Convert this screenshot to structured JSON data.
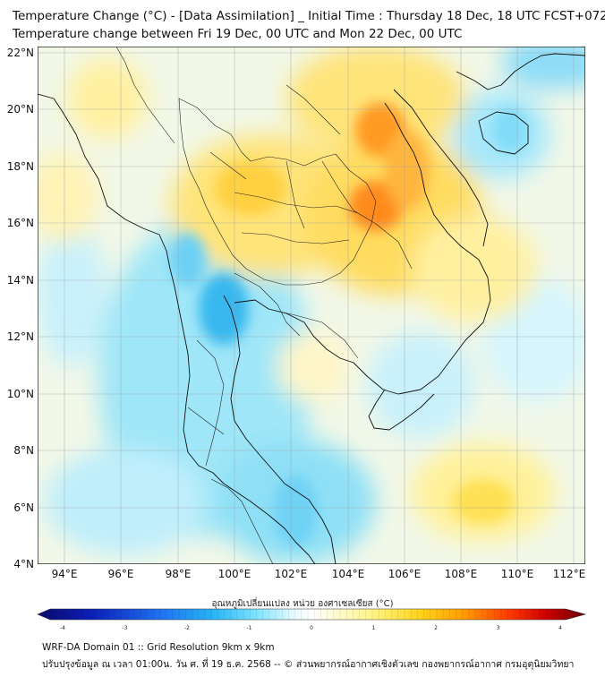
{
  "header": {
    "title_line1": "Temperature Change (°C) - [Data Assimilation] _ Initial Time : Thursday 18 Dec, 18 UTC FCST+072",
    "title_line2": "Temperature change between Fri 19 Dec, 00 UTC and Mon 22 Dec, 00 UTC"
  },
  "map": {
    "lat_labels": [
      "22°N",
      "20°N",
      "18°N",
      "16°N",
      "14°N",
      "12°N",
      "10°N",
      "8°N",
      "6°N",
      "4°N"
    ],
    "lon_labels": [
      "94°E",
      "96°E",
      "98°E",
      "100°E",
      "102°E",
      "104°E",
      "106°E",
      "108°E",
      "110°E",
      "112°E"
    ],
    "lat_range": [
      4,
      22.2
    ],
    "lon_range": [
      93.1,
      112.8
    ],
    "grid": true
  },
  "colorbar": {
    "title": "อุณหภูมิเปลี่ยนแปลง หน่วย องศาเซลเซียส (°C)",
    "ticks": [
      "-4",
      "-3",
      "-2",
      "-1",
      "0",
      "1",
      "2",
      "3",
      "4"
    ],
    "range": [
      -4,
      4
    ],
    "colors": {
      "cold_extreme": "#0a0a6e",
      "cold": "#1f5fe0",
      "cool": "#4fd0ff",
      "neutral": "#ffffff",
      "warm": "#fff27a",
      "hot": "#ff8a00",
      "hot_extreme": "#6e0000"
    }
  },
  "footer": {
    "line1": "WRF-DA Domain 01 :: Grid Resolution 9km x 9km",
    "line2": "ปรับปรุงข้อมูล ณ เวลา 01:00น. วัน ศ. ที่ 19 ธ.ค. 2568 -- © ส่วนพยากรณ์อากาศเชิงตัวเลข กองพยากรณ์อากาศ กรมอุตุนิยมวิทยา"
  }
}
